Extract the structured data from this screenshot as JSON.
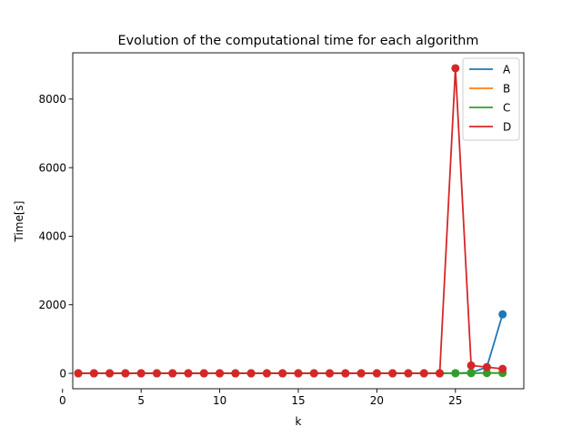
{
  "chart_data": {
    "type": "line",
    "title": "Evolution of the computational time for each algorithm",
    "xlabel": "k",
    "ylabel": "Time[s]",
    "xlim": [
      0.65,
      29.35
    ],
    "ylim": [
      -450,
      9350
    ],
    "xticks": [
      0,
      5,
      10,
      15,
      20,
      25
    ],
    "yticks": [
      0,
      2000,
      4000,
      6000,
      8000
    ],
    "grid": false,
    "legend_position": "upper right",
    "markers": true,
    "x": [
      1,
      2,
      3,
      4,
      5,
      6,
      7,
      8,
      9,
      10,
      11,
      12,
      13,
      14,
      15,
      16,
      17,
      18,
      19,
      20,
      21,
      22,
      23,
      24,
      25,
      26,
      27,
      28
    ],
    "series": [
      {
        "name": "A",
        "color": "#1f77b4",
        "values": [
          0,
          0,
          0,
          0,
          0,
          0,
          0,
          0,
          0,
          0,
          0,
          0,
          0,
          0,
          0,
          0,
          0,
          0,
          0,
          0,
          0,
          0,
          0,
          0,
          5,
          20,
          180,
          1720
        ]
      },
      {
        "name": "B",
        "color": "#ff7f0e",
        "values": [
          0,
          0,
          0,
          0,
          0,
          0,
          0,
          0,
          0,
          0,
          0,
          0,
          0,
          0,
          0,
          0,
          0,
          0,
          0,
          0,
          0,
          0,
          0,
          0,
          2,
          5,
          8,
          10
        ]
      },
      {
        "name": "C",
        "color": "#2ca02c",
        "values": [
          0,
          0,
          0,
          0,
          0,
          0,
          0,
          0,
          0,
          0,
          0,
          0,
          0,
          0,
          0,
          0,
          0,
          0,
          0,
          0,
          0,
          0,
          0,
          0,
          2,
          5,
          8,
          10
        ]
      },
      {
        "name": "D",
        "color": "#d62728",
        "values": [
          0,
          0,
          0,
          0,
          0,
          0,
          0,
          0,
          0,
          0,
          0,
          0,
          0,
          0,
          0,
          0,
          0,
          0,
          0,
          0,
          0,
          0,
          0,
          0,
          8900,
          230,
          180,
          130
        ]
      }
    ]
  }
}
